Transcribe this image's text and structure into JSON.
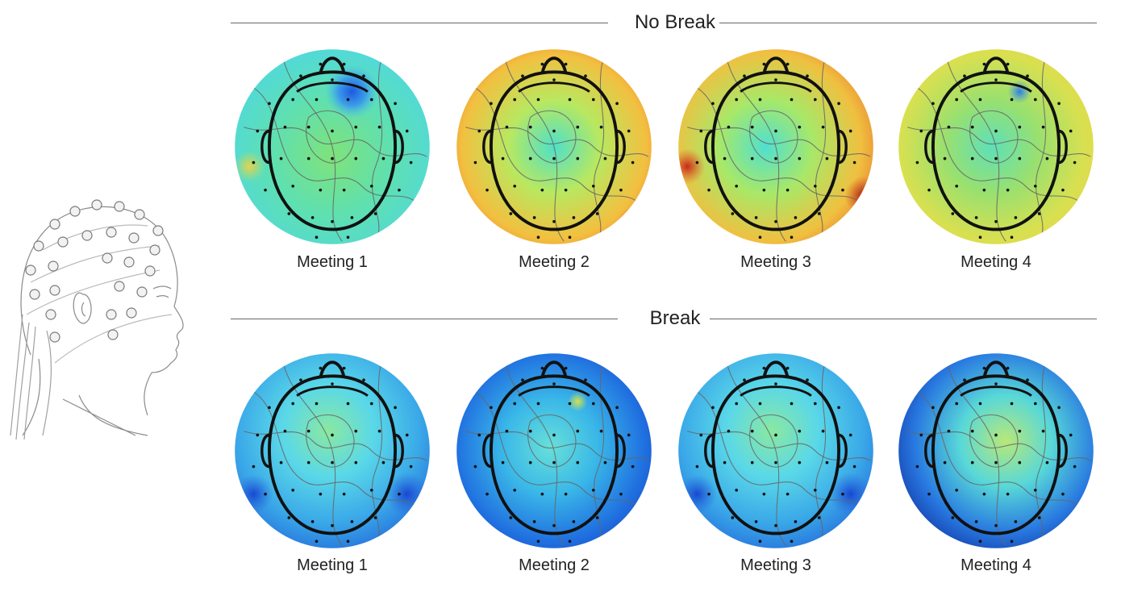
{
  "sections": [
    {
      "title": "No Break",
      "meetings": [
        {
          "label": "Meeting 1",
          "palette": "cool-green"
        },
        {
          "label": "Meeting 2",
          "palette": "warm-red"
        },
        {
          "label": "Meeting 3",
          "palette": "warm-dark-red"
        },
        {
          "label": "Meeting 4",
          "palette": "green-yellow"
        }
      ]
    },
    {
      "title": "Break",
      "meetings": [
        {
          "label": "Meeting 1",
          "palette": "cyan-blue"
        },
        {
          "label": "Meeting 2",
          "palette": "deep-blue"
        },
        {
          "label": "Meeting 3",
          "palette": "cyan-blue"
        },
        {
          "label": "Meeting 4",
          "palette": "deep-blue-green-center"
        }
      ]
    }
  ],
  "colors": {
    "line": "#666666",
    "outline": "#111111",
    "electrode": "#111111"
  }
}
